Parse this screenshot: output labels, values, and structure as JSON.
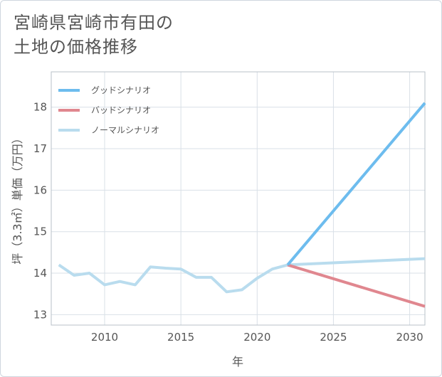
{
  "title_lines": [
    "宮崎県宮崎市有田の",
    "土地の価格推移"
  ],
  "chart_data": {
    "type": "line",
    "title": "宮崎県宮崎市有田の土地の価格推移",
    "xlabel": "年",
    "ylabel": "坪（3.3㎡）単価（万円）",
    "xlim": [
      2006.5,
      2031
    ],
    "ylim": [
      12.75,
      18.85
    ],
    "xticks": [
      2010,
      2015,
      2020,
      2025,
      2030
    ],
    "yticks": [
      13,
      14,
      15,
      16,
      17,
      18
    ],
    "grid": true,
    "legend_position": "top-left",
    "series": [
      {
        "name": "グッドシナリオ",
        "color": "#6dbcee",
        "x": [
          2022,
          2031
        ],
        "y": [
          14.2,
          18.1
        ]
      },
      {
        "name": "バッドシナリオ",
        "color": "#e0878f",
        "x": [
          2022,
          2031
        ],
        "y": [
          14.2,
          13.2
        ]
      },
      {
        "name": "ノーマルシナリオ",
        "color": "#b9dcee",
        "x": [
          2007,
          2008,
          2009,
          2010,
          2011,
          2012,
          2013,
          2014,
          2015,
          2016,
          2017,
          2018,
          2019,
          2020,
          2021,
          2022,
          2031
        ],
        "y": [
          14.2,
          13.95,
          14.0,
          13.72,
          13.8,
          13.72,
          14.15,
          14.12,
          14.1,
          13.9,
          13.9,
          13.55,
          13.6,
          13.88,
          14.1,
          14.2,
          14.35
        ]
      }
    ]
  }
}
